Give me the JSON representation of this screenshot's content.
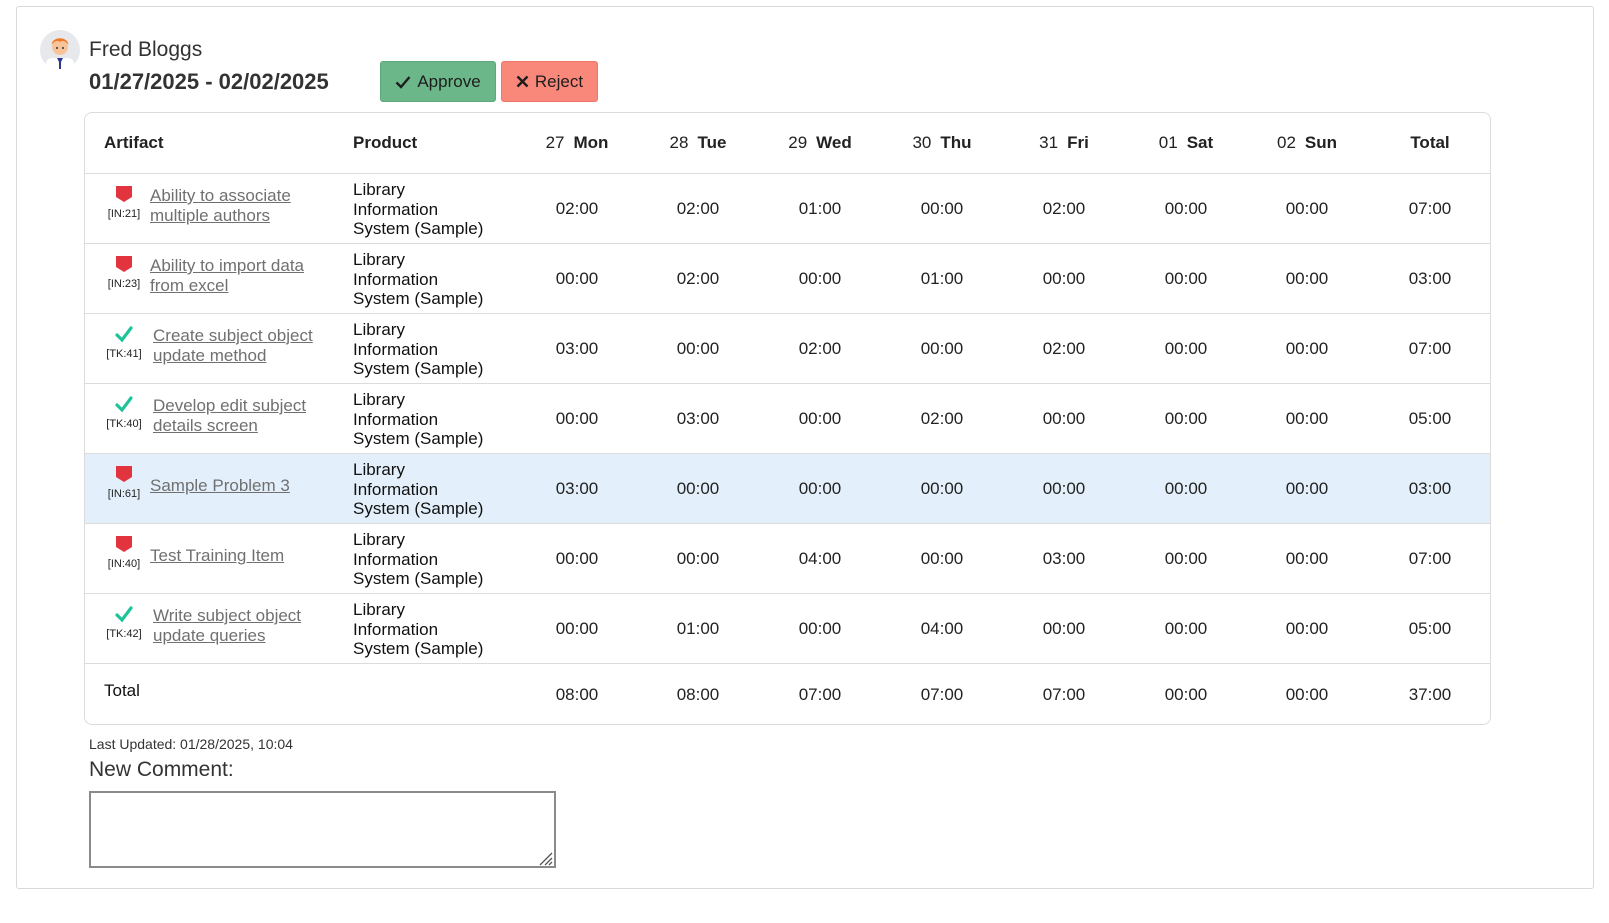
{
  "user": {
    "name": "Fred Bloggs",
    "date_range": "01/27/2025 - 02/02/2025"
  },
  "actions": {
    "approve_label": "Approve",
    "reject_label": "Reject"
  },
  "table": {
    "headers": {
      "artifact": "Artifact",
      "product": "Product",
      "days": [
        {
          "num": "27",
          "name": "Mon"
        },
        {
          "num": "28",
          "name": "Tue"
        },
        {
          "num": "29",
          "name": "Wed"
        },
        {
          "num": "30",
          "name": "Thu"
        },
        {
          "num": "31",
          "name": "Fri"
        },
        {
          "num": "01",
          "name": "Sat"
        },
        {
          "num": "02",
          "name": "Sun"
        }
      ],
      "total": "Total"
    },
    "rows": [
      {
        "type": "incident",
        "icon": "flag-icon",
        "id": "[IN:21]",
        "line1": "Ability to associate",
        "line2": "multiple authors",
        "product": [
          "Library",
          "Information",
          "System (Sample)"
        ],
        "hours": [
          "02:00",
          "02:00",
          "01:00",
          "00:00",
          "02:00",
          "00:00",
          "00:00"
        ],
        "total": "07:00"
      },
      {
        "type": "incident",
        "icon": "flag-icon",
        "id": "[IN:23]",
        "line1": "Ability to import data",
        "line2": "from excel",
        "product": [
          "Library",
          "Information",
          "System (Sample)"
        ],
        "hours": [
          "00:00",
          "02:00",
          "00:00",
          "01:00",
          "00:00",
          "00:00",
          "00:00"
        ],
        "total": "03:00"
      },
      {
        "type": "task",
        "icon": "check-icon",
        "id": "[TK:41]",
        "line1": "Create subject object",
        "line2": "update method",
        "product": [
          "Library",
          "Information",
          "System (Sample)"
        ],
        "hours": [
          "03:00",
          "00:00",
          "02:00",
          "00:00",
          "02:00",
          "00:00",
          "00:00"
        ],
        "total": "07:00"
      },
      {
        "type": "task",
        "icon": "check-icon",
        "id": "[TK:40]",
        "line1": "Develop edit subject",
        "line2": "details screen",
        "product": [
          "Library",
          "Information",
          "System (Sample)"
        ],
        "hours": [
          "00:00",
          "03:00",
          "00:00",
          "02:00",
          "00:00",
          "00:00",
          "00:00"
        ],
        "total": "05:00"
      },
      {
        "type": "incident",
        "icon": "flag-icon",
        "id": "[IN:61]",
        "line1": "Sample Problem 3",
        "line2": "",
        "product": [
          "Library",
          "Information",
          "System (Sample)"
        ],
        "hours": [
          "03:00",
          "00:00",
          "00:00",
          "00:00",
          "00:00",
          "00:00",
          "00:00"
        ],
        "total": "03:00",
        "highlighted": true
      },
      {
        "type": "incident",
        "icon": "flag-icon",
        "id": "[IN:40]",
        "line1": "Test Training Item",
        "line2": "",
        "product": [
          "Library",
          "Information",
          "System (Sample)"
        ],
        "hours": [
          "00:00",
          "00:00",
          "04:00",
          "00:00",
          "03:00",
          "00:00",
          "00:00"
        ],
        "total": "07:00"
      },
      {
        "type": "task",
        "icon": "check-icon",
        "id": "[TK:42]",
        "line1": "Write subject object",
        "line2": "update queries",
        "product": [
          "Library",
          "Information",
          "System (Sample)"
        ],
        "hours": [
          "00:00",
          "01:00",
          "00:00",
          "04:00",
          "00:00",
          "00:00",
          "00:00"
        ],
        "total": "05:00"
      }
    ],
    "totals": {
      "label": "Total",
      "hours": [
        "08:00",
        "08:00",
        "07:00",
        "07:00",
        "07:00",
        "00:00",
        "00:00"
      ],
      "total": "37:00"
    }
  },
  "footer": {
    "last_updated": "Last Updated: 01/28/2025, 10:04",
    "comment_label": "New Comment:",
    "comment_value": ""
  },
  "colors": {
    "approve": "#6cb78a",
    "reject": "#f9877a",
    "incident_flag": "#e2343f",
    "task_check": "#1fc39a",
    "highlight_row": "#e3f0fb"
  }
}
